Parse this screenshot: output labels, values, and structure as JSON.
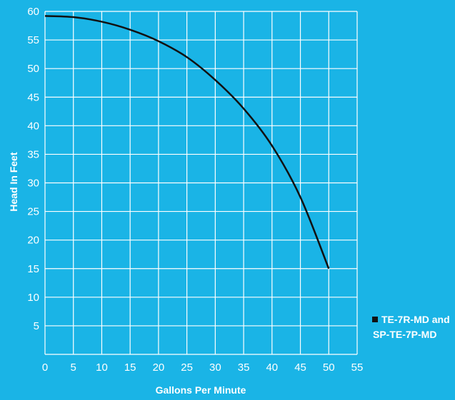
{
  "chart_data": {
    "type": "line",
    "xlabel": "Gallons Per Minute",
    "ylabel": "Head In Feet",
    "xlim": [
      0,
      55
    ],
    "ylim": [
      0,
      60
    ],
    "x_ticks": [
      "0",
      "5",
      "10",
      "15",
      "20",
      "25",
      "30",
      "35",
      "40",
      "45",
      "50",
      "55"
    ],
    "y_ticks": [
      "5",
      "10",
      "15",
      "20",
      "25",
      "30",
      "35",
      "40",
      "45",
      "50",
      "55",
      "60"
    ],
    "grid": true,
    "legend_position": "right",
    "colors": {
      "background": "#1ab4e6",
      "grid": "#ffffff",
      "line": "#111111"
    },
    "series": [
      {
        "name_lines": [
          "TE-7R-MD and",
          "SP-TE-7P-MD"
        ],
        "x": [
          0,
          5,
          10,
          15,
          20,
          25,
          30,
          35,
          40,
          45,
          50
        ],
        "y": [
          59.2,
          59.0,
          58.2,
          56.8,
          54.8,
          52.0,
          48.0,
          43.0,
          36.5,
          27.5,
          15.0
        ]
      }
    ]
  }
}
